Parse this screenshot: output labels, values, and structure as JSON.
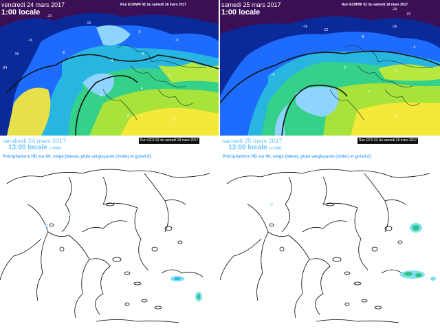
{
  "panels": [
    {
      "date": "vendredi 24 mars 2017",
      "time": "1:00 locale",
      "run": "Run ECMWF 0Z du samedi 18 mars 2017",
      "labels": [
        "-24",
        "-16",
        "-20",
        "-16",
        "-12",
        "-8",
        "-8",
        "-8",
        "-4",
        "-4",
        "0",
        "0",
        "4",
        "8",
        "12"
      ]
    },
    {
      "date": "samedi 25 mars 2017",
      "time": "1:00 locale",
      "run": "Run ECMWF 0Z du samedi 18 mars 2017",
      "labels": [
        "-24",
        "-20",
        "-16",
        "-16",
        "-12",
        "-8",
        "-4",
        "-4",
        "0",
        "0",
        "4",
        "8"
      ]
    },
    {
      "date": "vendredi 24 mars 2017",
      "time": "13:00 locale",
      "time_suffix": "(+150h)",
      "subtitle": "Précipitations HD sur 6h, neige (bleue), pluie verglaçante (violet) et grésil (/)",
      "run": "Run GFS 6Z du samedi 18 mars 2017"
    },
    {
      "date": "samedi 25 mars 2017",
      "time": "13:00 locale",
      "time_suffix": "(+174h)",
      "subtitle": "Précipitations HD sur 6h, neige (bleue), pluie verglaçante (violet) et grésil (/)",
      "run": "Run GFS 6Z du samedi 18 mars 2017"
    }
  ]
}
